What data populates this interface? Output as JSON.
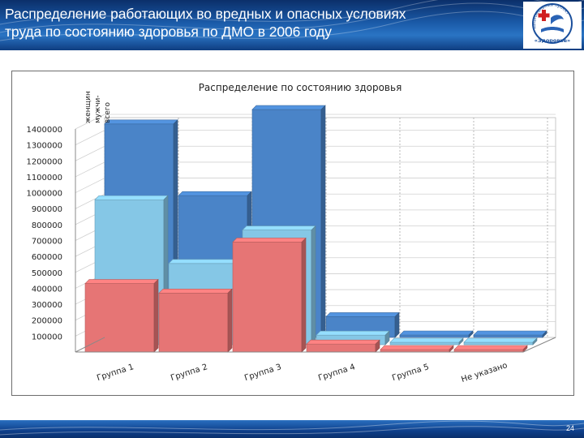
{
  "slide": {
    "title_line1": "Распределение работающих во вредных и опасных условиях",
    "title_line2": "труда по состоянию здоровья по ДМО в 2006 году",
    "page_number": "24",
    "logo_ribbon": "национальный проект",
    "logo_name": "«Здоровье»"
  },
  "chart_data": {
    "type": "bar",
    "title": "Распределение по состоянию здоровья",
    "categories": [
      "Группа 1",
      "Группа 2",
      "Группа 3",
      "Группа 4",
      "Группа 5",
      "Не указано"
    ],
    "series": [
      {
        "name": "всего",
        "color": "#4a84c8",
        "values": [
          1340000,
          890000,
          1430000,
          130000,
          5000,
          5000
        ]
      },
      {
        "name": "мужчи-ны",
        "color": "#85c7e6",
        "values": [
          910000,
          510000,
          720000,
          60000,
          3000,
          3000
        ]
      },
      {
        "name": "женщин",
        "color": "#e67575",
        "values": [
          430000,
          370000,
          690000,
          50000,
          2000,
          2000
        ]
      }
    ],
    "legend_labels": [
      "женщин",
      "мужчи-",
      "всего"
    ],
    "yticks": [
      "1400000",
      "1300000",
      "1200000",
      "1100000",
      "1000000",
      "900000",
      "800000",
      "700000",
      "600000",
      "500000",
      "400000",
      "300000",
      "200000",
      "100000"
    ],
    "ylim": [
      0,
      1400000
    ],
    "xlabel": "",
    "ylabel": ""
  }
}
